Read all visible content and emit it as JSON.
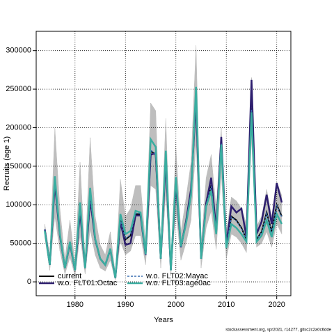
{
  "chart_data": {
    "type": "line",
    "xlabel": "Years",
    "ylabel": "Recruits (age 1)",
    "footnote": "stockassessment.org, spr2021, r14277, gitsc2c2a0c6dde",
    "x": [
      1974,
      1975,
      1976,
      1977,
      1978,
      1979,
      1980,
      1981,
      1982,
      1983,
      1984,
      1985,
      1986,
      1987,
      1988,
      1989,
      1990,
      1991,
      1992,
      1993,
      1994,
      1995,
      1996,
      1997,
      1998,
      1999,
      2000,
      2001,
      2002,
      2003,
      2004,
      2005,
      2006,
      2007,
      2008,
      2009,
      2010,
      2011,
      2012,
      2013,
      2014,
      2015,
      2016,
      2017,
      2018,
      2019,
      2020,
      2021
    ],
    "xlim": [
      1972.3,
      2022.8
    ],
    "xticks": [
      1980,
      1990,
      2000,
      2010,
      2020
    ],
    "ylim": [
      -18000,
      325000
    ],
    "yticks": [
      0,
      50000,
      100000,
      150000,
      200000,
      250000,
      300000
    ],
    "grid": true,
    "legend": "bottom-left",
    "band": {
      "color": "#bebebe",
      "upper": [
        75000,
        35000,
        200000,
        95000,
        30000,
        80000,
        25000,
        155000,
        30000,
        187000,
        85000,
        48000,
        35000,
        65000,
        10000,
        133000,
        85000,
        95000,
        125000,
        125000,
        50000,
        232000,
        222000,
        45000,
        212000,
        25000,
        175000,
        65000,
        108000,
        155000,
        307000,
        45000,
        135000,
        165000,
        95000,
        200000,
        65000,
        110000,
        105000,
        95000,
        75000,
        265000,
        72000,
        85000,
        120000,
        85000,
        130000,
        112000
      ],
      "lower": [
        58000,
        15000,
        85000,
        40000,
        10000,
        32000,
        8000,
        60000,
        10000,
        68000,
        35000,
        18000,
        14000,
        28000,
        2000,
        52000,
        35000,
        40000,
        60000,
        60000,
        22000,
        125000,
        120000,
        18000,
        115000,
        8000,
        92000,
        28000,
        50000,
        80000,
        180000,
        18000,
        70000,
        92000,
        42000,
        140000,
        30000,
        62000,
        58000,
        50000,
        38000,
        185000,
        45000,
        50000,
        65000,
        45000,
        75000,
        62000
      ]
    },
    "series": [
      {
        "name": "current",
        "color": "#000000",
        "dash": "none",
        "values": [
          68000,
          22000,
          130000,
          60000,
          18000,
          50000,
          15000,
          95000,
          18000,
          110000,
          55000,
          30000,
          22000,
          42000,
          5000,
          80000,
          55000,
          60000,
          88000,
          88000,
          35000,
          170000,
          165000,
          30000,
          160000,
          15000,
          130000,
          45000,
          75000,
          115000,
          240000,
          30000,
          100000,
          125000,
          65000,
          180000,
          45000,
          85000,
          80000,
          70000,
          55000,
          225000,
          55000,
          65000,
          90000,
          65000,
          100000,
          85000
        ]
      },
      {
        "name": "w.o. FLT01:Octac",
        "color": "#2d1e6e",
        "dash": "none",
        "values": [
          68000,
          22000,
          128000,
          60000,
          18000,
          50000,
          15000,
          92000,
          18000,
          108000,
          55000,
          30000,
          22000,
          42000,
          5000,
          78000,
          48000,
          50000,
          86000,
          86000,
          35000,
          165000,
          167000,
          30000,
          158000,
          15000,
          128000,
          45000,
          78000,
          120000,
          235000,
          30000,
          102000,
          135000,
          68000,
          188000,
          48000,
          98000,
          90000,
          95000,
          58000,
          262000,
          62000,
          78000,
          113000,
          75000,
          128000,
          103000
        ]
      },
      {
        "name": "w.o. FLT02:Mayac",
        "color": "#3a6fb0",
        "dash": "3 2",
        "values": [
          68000,
          22000,
          131000,
          61000,
          18000,
          51000,
          15000,
          96000,
          18000,
          111000,
          55000,
          30000,
          22000,
          42000,
          5000,
          80000,
          56000,
          61000,
          89000,
          89000,
          35000,
          171000,
          165000,
          30000,
          161000,
          15000,
          131000,
          45000,
          75000,
          115000,
          242000,
          30000,
          100000,
          124000,
          65000,
          180000,
          45000,
          84000,
          79000,
          69000,
          55000,
          224000,
          55000,
          64000,
          89000,
          64000,
          99000,
          84000
        ]
      },
      {
        "name": "w.o. FLT03:age0ac",
        "color": "#3aada0",
        "dash": "none",
        "values": [
          66000,
          22000,
          137000,
          62000,
          18000,
          52000,
          15000,
          103000,
          18000,
          122000,
          56000,
          30000,
          22000,
          43000,
          5000,
          88000,
          62000,
          66000,
          92000,
          90000,
          36000,
          185000,
          175000,
          30000,
          170000,
          15000,
          136000,
          46000,
          75000,
          112000,
          253000,
          30000,
          98000,
          118000,
          62000,
          178000,
          44000,
          75000,
          70000,
          62000,
          52000,
          220000,
          52000,
          60000,
          80000,
          58000,
          88000,
          75000
        ]
      }
    ]
  }
}
